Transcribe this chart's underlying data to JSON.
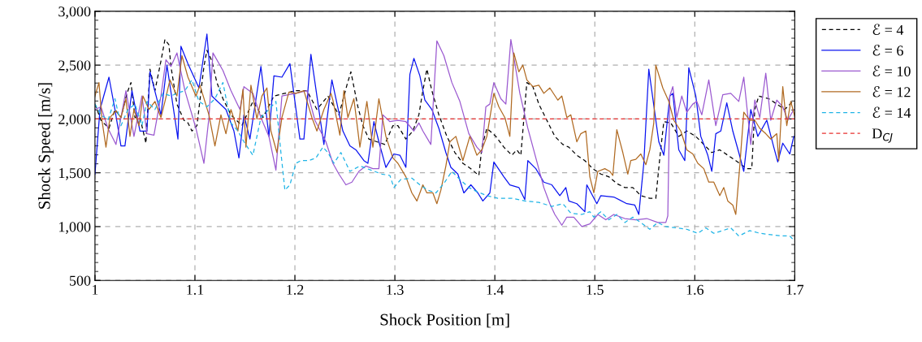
{
  "chart_data": {
    "type": "line",
    "xlabel": "Shock Position [m]",
    "ylabel": "Shock Speed [m/s]",
    "xlim": [
      1,
      1.7
    ],
    "xticks": [
      1,
      1.1,
      1.2,
      1.3,
      1.4,
      1.5,
      1.6,
      1.7
    ],
    "ylim": [
      500,
      3000
    ],
    "yticks": [
      500,
      {
        "value": 1000,
        "label": "1,000"
      },
      {
        "value": 1500,
        "label": "1,500"
      },
      {
        "value": 2000,
        "label": "2,000"
      },
      {
        "value": 2500,
        "label": "2,500"
      },
      {
        "value": 3000,
        "label": "3,000"
      }
    ],
    "grid": true,
    "legend": "top right",
    "marker": "none",
    "ref_lines": [
      {
        "axis": "y",
        "value": 2000,
        "label": "D$_{CJ}$",
        "color": "#e8302f",
        "line_style": "dashed"
      }
    ],
    "series": [
      {
        "name": "ℰ = 4",
        "color": "#000000",
        "line_style": "dashed",
        "x": [
          1.0,
          1.006,
          1.014,
          1.02,
          1.026,
          1.032,
          1.036,
          1.04,
          1.045,
          1.051,
          1.055,
          1.06,
          1.066,
          1.07,
          1.074,
          1.076,
          1.082,
          1.089,
          1.093,
          1.097,
          1.102,
          1.109,
          1.112,
          1.117,
          1.122,
          1.128,
          1.136,
          1.147,
          1.158,
          1.168,
          1.179,
          1.19,
          1.201,
          1.212,
          1.222,
          1.233,
          1.244,
          1.252,
          1.256,
          1.263,
          1.268,
          1.274,
          1.282,
          1.29,
          1.298,
          1.303,
          1.311,
          1.318,
          1.324,
          1.328,
          1.332,
          1.337,
          1.344,
          1.352,
          1.36,
          1.368,
          1.376,
          1.384,
          1.387,
          1.392,
          1.401,
          1.409,
          1.417,
          1.422,
          1.426,
          1.432,
          1.438,
          1.444,
          1.452,
          1.46,
          1.468,
          1.474,
          1.482,
          1.49,
          1.498,
          1.506,
          1.514,
          1.522,
          1.53,
          1.538,
          1.546,
          1.555,
          1.561,
          1.565,
          1.569,
          1.576,
          1.584,
          1.592,
          1.601,
          1.609,
          1.617,
          1.625,
          1.633,
          1.641,
          1.652,
          1.657,
          1.66,
          1.664,
          1.674,
          1.682,
          1.69,
          1.698
        ],
        "values": [
          2138,
          1988,
          1913,
          2088,
          2013,
          2238,
          2338,
          2013,
          2013,
          1775,
          2463,
          2263,
          2538,
          2738,
          2688,
          2488,
          2138,
          1988,
          1963,
          1888,
          1938,
          2488,
          2638,
          2538,
          2338,
          2188,
          2038,
          1938,
          2163,
          2013,
          2213,
          2238,
          2263,
          2263,
          2088,
          2213,
          2038,
          2313,
          2438,
          2113,
          1938,
          1813,
          1788,
          1763,
          1938,
          1938,
          1813,
          1888,
          2038,
          2263,
          2463,
          2263,
          2038,
          1838,
          1688,
          1588,
          1538,
          1475,
          1738,
          1913,
          1838,
          1738,
          1663,
          1713,
          1663,
          2338,
          2300,
          2138,
          1988,
          1838,
          1763,
          1738,
          1663,
          1613,
          1538,
          1488,
          1463,
          1400,
          1363,
          1363,
          1288,
          1263,
          1263,
          1638,
          1975,
          1963,
          1838,
          1888,
          1838,
          1763,
          1688,
          1713,
          1663,
          1613,
          1538,
          1538,
          2088,
          2213,
          2188,
          2138,
          2088,
          2163
        ]
      },
      {
        "name": "ℰ = 6",
        "color": "#0a14f0",
        "line_style": "solid",
        "x": [
          1.0,
          1.005,
          1.014,
          1.02,
          1.026,
          1.03,
          1.037,
          1.045,
          1.052,
          1.055,
          1.066,
          1.072,
          1.083,
          1.086,
          1.093,
          1.104,
          1.112,
          1.117,
          1.131,
          1.139,
          1.144,
          1.149,
          1.155,
          1.166,
          1.174,
          1.179,
          1.187,
          1.195,
          1.205,
          1.209,
          1.216,
          1.229,
          1.237,
          1.248,
          1.255,
          1.261,
          1.269,
          1.273,
          1.279,
          1.284,
          1.291,
          1.299,
          1.305,
          1.311,
          1.315,
          1.319,
          1.325,
          1.33,
          1.337,
          1.344,
          1.351,
          1.356,
          1.363,
          1.369,
          1.376,
          1.383,
          1.388,
          1.395,
          1.399,
          1.409,
          1.415,
          1.424,
          1.43,
          1.433,
          1.441,
          1.449,
          1.457,
          1.465,
          1.471,
          1.474,
          1.482,
          1.49,
          1.492,
          1.502,
          1.506,
          1.519,
          1.532,
          1.54,
          1.544,
          1.549,
          1.554,
          1.564,
          1.569,
          1.575,
          1.578,
          1.584,
          1.59,
          1.594,
          1.601,
          1.606,
          1.613,
          1.617,
          1.621,
          1.626,
          1.632,
          1.638,
          1.644,
          1.649,
          1.656,
          1.663,
          1.672,
          1.679,
          1.683,
          1.688,
          1.695,
          1.699
        ],
        "values": [
          1487,
          2088,
          2388,
          2088,
          1750,
          1750,
          2263,
          1888,
          1888,
          2438,
          2038,
          2500,
          1813,
          2675,
          2513,
          2288,
          2788,
          2213,
          2088,
          1888,
          1638,
          2038,
          1813,
          2488,
          1838,
          2400,
          2388,
          2513,
          1813,
          1813,
          2600,
          1763,
          2363,
          1888,
          1750,
          1713,
          1613,
          1588,
          1975,
          1788,
          1550,
          1675,
          1663,
          1550,
          2413,
          2563,
          2400,
          2175,
          2088,
          1913,
          1688,
          1550,
          1488,
          1313,
          1388,
          1313,
          1238,
          1313,
          1600,
          1463,
          1388,
          1363,
          1250,
          1613,
          1538,
          1413,
          1388,
          1288,
          1363,
          1238,
          1213,
          1138,
          1388,
          1213,
          1288,
          1275,
          1213,
          1200,
          1113,
          1588,
          2463,
          1788,
          1663,
          2213,
          2238,
          1713,
          1613,
          2475,
          2213,
          1838,
          1663,
          1513,
          1863,
          1888,
          2150,
          1888,
          1688,
          1513,
          2088,
          1838,
          1988,
          1738,
          1600,
          1775,
          1675,
          1838
        ]
      },
      {
        "name": "ℰ = 10",
        "color": "#9b59d0",
        "line_style": "solid",
        "x": [
          1.0,
          1.006,
          1.013,
          1.021,
          1.031,
          1.039,
          1.047,
          1.052,
          1.059,
          1.066,
          1.071,
          1.076,
          1.082,
          1.09,
          1.101,
          1.109,
          1.114,
          1.118,
          1.128,
          1.136,
          1.145,
          1.149,
          1.158,
          1.166,
          1.174,
          1.181,
          1.187,
          1.201,
          1.212,
          1.22,
          1.231,
          1.238,
          1.244,
          1.251,
          1.257,
          1.264,
          1.271,
          1.278,
          1.284,
          1.288,
          1.295,
          1.303,
          1.311,
          1.319,
          1.324,
          1.328,
          1.336,
          1.342,
          1.349,
          1.357,
          1.365,
          1.374,
          1.382,
          1.387,
          1.391,
          1.395,
          1.399,
          1.406,
          1.411,
          1.416,
          1.425,
          1.433,
          1.441,
          1.449,
          1.455,
          1.46,
          1.467,
          1.472,
          1.479,
          1.487,
          1.495,
          1.503,
          1.511,
          1.519,
          1.53,
          1.541,
          1.552,
          1.563,
          1.571,
          1.573,
          1.575,
          1.578,
          1.582,
          1.587,
          1.592,
          1.598,
          1.602,
          1.607,
          1.614,
          1.621,
          1.628,
          1.636,
          1.644,
          1.649,
          1.656,
          1.66,
          1.665,
          1.671,
          1.676,
          1.682,
          1.688,
          1.693,
          1.699
        ],
        "values": [
          2088,
          2113,
          1913,
          1763,
          2263,
          1838,
          2213,
          1863,
          1850,
          2213,
          2550,
          2488,
          2613,
          2263,
          1913,
          1588,
          2013,
          2613,
          2450,
          2263,
          2088,
          2300,
          2238,
          2013,
          1838,
          1525,
          2213,
          2238,
          2263,
          1988,
          1788,
          1588,
          1488,
          1388,
          1413,
          1513,
          1563,
          1538,
          1538,
          2038,
          1975,
          1988,
          1975,
          1888,
          1963,
          1888,
          1763,
          2725,
          2588,
          2338,
          2163,
          1863,
          1738,
          1688,
          2113,
          2138,
          2338,
          2188,
          2138,
          2738,
          2238,
          1913,
          1638,
          1363,
          1213,
          1113,
          1013,
          1088,
          1088,
          1000,
          1025,
          1113,
          1063,
          1113,
          1075,
          1063,
          1075,
          1038,
          1038,
          1100,
          2213,
          2300,
          2013,
          2213,
          2063,
          2138,
          2163,
          2038,
          2363,
          1938,
          2225,
          2238,
          2163,
          2388,
          1763,
          2175,
          2013,
          2425,
          1988,
          2175,
          2113,
          1988,
          2088
        ]
      },
      {
        "name": "ℰ = 12",
        "color": "#b06a22",
        "line_style": "solid",
        "x": [
          1.0,
          1.004,
          1.007,
          1.011,
          1.015,
          1.021,
          1.026,
          1.031,
          1.035,
          1.039,
          1.044,
          1.048,
          1.054,
          1.06,
          1.066,
          1.07,
          1.075,
          1.082,
          1.087,
          1.093,
          1.101,
          1.105,
          1.114,
          1.12,
          1.126,
          1.131,
          1.136,
          1.143,
          1.148,
          1.151,
          1.156,
          1.162,
          1.167,
          1.172,
          1.176,
          1.182,
          1.187,
          1.194,
          1.201,
          1.209,
          1.217,
          1.222,
          1.229,
          1.236,
          1.238,
          1.245,
          1.249,
          1.253,
          1.259,
          1.265,
          1.272,
          1.278,
          1.284,
          1.291,
          1.298,
          1.303,
          1.311,
          1.317,
          1.322,
          1.328,
          1.332,
          1.338,
          1.342,
          1.346,
          1.351,
          1.355,
          1.361,
          1.368,
          1.375,
          1.382,
          1.387,
          1.392,
          1.399,
          1.404,
          1.41,
          1.415,
          1.419,
          1.424,
          1.428,
          1.432,
          1.438,
          1.444,
          1.449,
          1.455,
          1.463,
          1.467,
          1.472,
          1.476,
          1.482,
          1.486,
          1.491,
          1.495,
          1.499,
          1.503,
          1.51,
          1.515,
          1.518,
          1.522,
          1.528,
          1.533,
          1.536,
          1.541,
          1.546,
          1.551,
          1.555,
          1.559,
          1.561,
          1.568,
          1.574,
          1.579,
          1.586,
          1.592,
          1.598,
          1.603,
          1.609,
          1.614,
          1.619,
          1.625,
          1.629,
          1.633,
          1.638,
          1.641,
          1.645,
          1.649,
          1.655,
          1.66,
          1.665,
          1.671,
          1.676,
          1.682,
          1.684,
          1.688,
          1.692,
          1.696,
          1.7
        ],
        "values": [
          2213,
          2338,
          1988,
          1738,
          2013,
          2075,
          2013,
          2188,
          1838,
          2088,
          1938,
          2213,
          2088,
          2163,
          2013,
          2163,
          2363,
          2213,
          2588,
          2388,
          2213,
          2313,
          2038,
          1750,
          2038,
          1863,
          2088,
          1888,
          2275,
          1738,
          2313,
          2000,
          2213,
          2288,
          1888,
          1688,
          2013,
          2250,
          2238,
          2263,
          2013,
          1888,
          2088,
          2238,
          2175,
          1850,
          2263,
          2013,
          2188,
          1738,
          2163,
          1738,
          2188,
          1838,
          1638,
          1588,
          1463,
          1313,
          1238,
          1388,
          1313,
          1313,
          1213,
          1338,
          1563,
          1788,
          1838,
          1613,
          1838,
          1663,
          1713,
          1838,
          2238,
          2113,
          2013,
          1838,
          2613,
          2438,
          2500,
          2363,
          2300,
          2313,
          2238,
          2288,
          2175,
          2213,
          2013,
          2038,
          1788,
          1863,
          1888,
          1463,
          1313,
          1513,
          1538,
          1513,
          1475,
          1900,
          1688,
          1488,
          1613,
          1625,
          1675,
          1575,
          1713,
          1963,
          2500,
          2288,
          2163,
          1988,
          1888,
          1713,
          1675,
          1588,
          1538,
          1413,
          1413,
          1288,
          1363,
          1238,
          1200,
          1113,
          1563,
          2063,
          1988,
          1988,
          1913,
          1863,
          1813,
          1863,
          1613,
          2300,
          1938,
          2163,
          2025
        ]
      },
      {
        "name": "ℰ = 14",
        "color": "#1fb4e6",
        "line_style": "dashed",
        "x": [
          1.0,
          1.006,
          1.013,
          1.02,
          1.026,
          1.033,
          1.04,
          1.047,
          1.052,
          1.06,
          1.068,
          1.076,
          1.082,
          1.09,
          1.097,
          1.104,
          1.112,
          1.12,
          1.128,
          1.136,
          1.143,
          1.149,
          1.158,
          1.166,
          1.174,
          1.181,
          1.186,
          1.19,
          1.195,
          1.201,
          1.206,
          1.214,
          1.221,
          1.228,
          1.233,
          1.239,
          1.246,
          1.255,
          1.265,
          1.276,
          1.287,
          1.295,
          1.299,
          1.306,
          1.317,
          1.325,
          1.333,
          1.341,
          1.349,
          1.357,
          1.365,
          1.374,
          1.382,
          1.392,
          1.403,
          1.417,
          1.43,
          1.444,
          1.457,
          1.468,
          1.476,
          1.487,
          1.495,
          1.499,
          1.506,
          1.514,
          1.522,
          1.53,
          1.538,
          1.546,
          1.555,
          1.563,
          1.571,
          1.582,
          1.592,
          1.603,
          1.611,
          1.619,
          1.628,
          1.636,
          1.644,
          1.655,
          1.665,
          1.676,
          1.687,
          1.695,
          1.7
        ],
        "values": [
          2138,
          2038,
          1988,
          2188,
          1938,
          2088,
          2138,
          1938,
          2163,
          2088,
          2238,
          2213,
          2238,
          2263,
          2363,
          2163,
          2113,
          2188,
          2338,
          1963,
          1888,
          1788,
          1663,
          2013,
          2088,
          2163,
          1688,
          1338,
          1388,
          1588,
          1613,
          1613,
          1638,
          1738,
          1688,
          1588,
          1688,
          1513,
          1563,
          1525,
          1488,
          1475,
          1363,
          1438,
          1450,
          1388,
          1338,
          1313,
          1400,
          1513,
          1438,
          1363,
          1325,
          1288,
          1263,
          1263,
          1238,
          1225,
          1188,
          1213,
          1125,
          1113,
          1138,
          1088,
          1138,
          1063,
          1113,
          1038,
          1088,
          1038,
          975,
          1038,
          1000,
          988,
          975,
          938,
          988,
          938,
          963,
          988,
          913,
          963,
          938,
          925,
          913,
          913,
          863
        ]
      }
    ]
  }
}
